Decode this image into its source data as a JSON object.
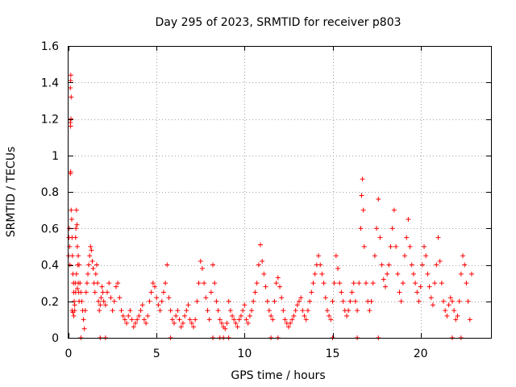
{
  "chart_data": {
    "type": "scatter",
    "title": "Day 295 of 2023, SRMTID for receiver p803",
    "xlabel": "GPS time / hours",
    "ylabel": "SRMTID / TECUs",
    "xlim": [
      0,
      24
    ],
    "ylim": [
      0,
      1.6
    ],
    "xticks": [
      0,
      5,
      10,
      15,
      20
    ],
    "xtick_labels": [
      "0",
      "5",
      "10",
      "15",
      "20"
    ],
    "yticks": [
      0,
      0.2,
      0.4,
      0.6,
      0.8,
      1,
      1.2,
      1.4,
      1.6
    ],
    "ytick_labels": [
      "0",
      "0.2",
      "0.4",
      "0.6",
      "0.8",
      "1",
      "1.2",
      "1.4",
      "1.6"
    ],
    "grid": true,
    "marker": "plus",
    "color": "#ff0000",
    "series": [
      {
        "name": "SRMTID",
        "points": [
          [
            0.0,
            0.45
          ],
          [
            0.02,
            0.55
          ],
          [
            0.04,
            0.6
          ],
          [
            0.06,
            0.5
          ],
          [
            0.08,
            0.4
          ],
          [
            0.1,
            1.37
          ],
          [
            0.12,
            1.41
          ],
          [
            0.13,
            1.44
          ],
          [
            0.15,
            1.32
          ],
          [
            0.1,
            1.18
          ],
          [
            0.12,
            1.16
          ],
          [
            0.14,
            1.2
          ],
          [
            0.1,
            0.9
          ],
          [
            0.12,
            0.91
          ],
          [
            0.15,
            0.7
          ],
          [
            0.18,
            0.65
          ],
          [
            0.2,
            0.55
          ],
          [
            0.22,
            0.45
          ],
          [
            0.25,
            0.35
          ],
          [
            0.28,
            0.3
          ],
          [
            0.3,
            0.25
          ],
          [
            0.32,
            0.2
          ],
          [
            0.35,
            0.15
          ],
          [
            0.38,
            0.3
          ],
          [
            0.4,
            0.55
          ],
          [
            0.42,
            0.6
          ],
          [
            0.45,
            0.7
          ],
          [
            0.48,
            0.62
          ],
          [
            0.5,
            0.5
          ],
          [
            0.52,
            0.4
          ],
          [
            0.55,
            0.3
          ],
          [
            0.58,
            0.25
          ],
          [
            0.6,
            0.2
          ],
          [
            0.2,
            0.15
          ],
          [
            0.25,
            0.14
          ],
          [
            0.3,
            0.12
          ],
          [
            0.35,
            0.18
          ],
          [
            0.4,
            0.25
          ],
          [
            0.45,
            0.35
          ],
          [
            0.5,
            0.27
          ],
          [
            0.55,
            0.45
          ],
          [
            0.6,
            0.4
          ],
          [
            0.65,
            0.3
          ],
          [
            0.7,
            0.25
          ],
          [
            0.75,
            0.2
          ],
          [
            0.8,
            0.15
          ],
          [
            0.85,
            0.1
          ],
          [
            0.9,
            0.05
          ],
          [
            0.95,
            0.15
          ],
          [
            1.0,
            0.25
          ],
          [
            1.05,
            0.3
          ],
          [
            1.1,
            0.35
          ],
          [
            1.15,
            0.4
          ],
          [
            1.2,
            0.45
          ],
          [
            1.25,
            0.5
          ],
          [
            1.3,
            0.48
          ],
          [
            1.35,
            0.42
          ],
          [
            1.4,
            0.38
          ],
          [
            1.45,
            0.3
          ],
          [
            1.5,
            0.25
          ],
          [
            1.55,
            0.35
          ],
          [
            1.6,
            0.4
          ],
          [
            1.65,
            0.3
          ],
          [
            1.7,
            0.2
          ],
          [
            1.75,
            0.15
          ],
          [
            1.8,
            0.18
          ],
          [
            1.85,
            0.22
          ],
          [
            1.9,
            0.28
          ],
          [
            1.95,
            0.25
          ],
          [
            2.0,
            0.2
          ],
          [
            2.1,
            0.18
          ],
          [
            2.2,
            0.25
          ],
          [
            2.3,
            0.3
          ],
          [
            2.4,
            0.22
          ],
          [
            2.5,
            0.15
          ],
          [
            2.6,
            0.2
          ],
          [
            2.7,
            0.28
          ],
          [
            2.8,
            0.3
          ],
          [
            2.9,
            0.22
          ],
          [
            3.0,
            0.15
          ],
          [
            3.1,
            0.12
          ],
          [
            3.2,
            0.1
          ],
          [
            3.3,
            0.08
          ],
          [
            3.4,
            0.12
          ],
          [
            3.5,
            0.15
          ],
          [
            3.6,
            0.1
          ],
          [
            3.7,
            0.06
          ],
          [
            3.8,
            0.08
          ],
          [
            3.9,
            0.1
          ],
          [
            4.0,
            0.12
          ],
          [
            4.1,
            0.15
          ],
          [
            4.2,
            0.18
          ],
          [
            4.3,
            0.1
          ],
          [
            4.4,
            0.08
          ],
          [
            4.5,
            0.12
          ],
          [
            4.6,
            0.2
          ],
          [
            4.7,
            0.25
          ],
          [
            4.8,
            0.3
          ],
          [
            4.9,
            0.28
          ],
          [
            5.0,
            0.22
          ],
          [
            5.1,
            0.18
          ],
          [
            5.2,
            0.15
          ],
          [
            5.3,
            0.2
          ],
          [
            5.4,
            0.25
          ],
          [
            5.5,
            0.3
          ],
          [
            5.6,
            0.4
          ],
          [
            5.7,
            0.22
          ],
          [
            5.8,
            0.15
          ],
          [
            5.9,
            0.1
          ],
          [
            6.0,
            0.08
          ],
          [
            6.1,
            0.12
          ],
          [
            6.2,
            0.15
          ],
          [
            6.3,
            0.1
          ],
          [
            6.4,
            0.06
          ],
          [
            6.5,
            0.08
          ],
          [
            6.6,
            0.12
          ],
          [
            6.7,
            0.15
          ],
          [
            6.8,
            0.18
          ],
          [
            6.9,
            0.1
          ],
          [
            7.0,
            0.08
          ],
          [
            7.1,
            0.06
          ],
          [
            7.2,
            0.1
          ],
          [
            7.3,
            0.2
          ],
          [
            7.4,
            0.3
          ],
          [
            7.5,
            0.42
          ],
          [
            7.6,
            0.38
          ],
          [
            7.7,
            0.3
          ],
          [
            7.8,
            0.22
          ],
          [
            7.9,
            0.15
          ],
          [
            8.0,
            0.1
          ],
          [
            8.1,
            0.25
          ],
          [
            8.2,
            0.4
          ],
          [
            8.3,
            0.3
          ],
          [
            8.4,
            0.2
          ],
          [
            8.5,
            0.15
          ],
          [
            8.6,
            0.1
          ],
          [
            8.7,
            0.08
          ],
          [
            8.8,
            0.06
          ],
          [
            8.9,
            0.05
          ],
          [
            9.0,
            0.08
          ],
          [
            9.1,
            0.2
          ],
          [
            9.2,
            0.15
          ],
          [
            9.3,
            0.12
          ],
          [
            9.4,
            0.1
          ],
          [
            9.5,
            0.08
          ],
          [
            9.6,
            0.06
          ],
          [
            9.7,
            0.1
          ],
          [
            9.8,
            0.12
          ],
          [
            9.9,
            0.15
          ],
          [
            10.0,
            0.18
          ],
          [
            10.1,
            0.1
          ],
          [
            10.2,
            0.08
          ],
          [
            10.3,
            0.12
          ],
          [
            10.4,
            0.15
          ],
          [
            10.5,
            0.2
          ],
          [
            10.6,
            0.25
          ],
          [
            10.7,
            0.3
          ],
          [
            10.8,
            0.4
          ],
          [
            10.9,
            0.51
          ],
          [
            11.0,
            0.42
          ],
          [
            11.1,
            0.35
          ],
          [
            11.2,
            0.28
          ],
          [
            11.3,
            0.2
          ],
          [
            11.4,
            0.15
          ],
          [
            11.5,
            0.12
          ],
          [
            11.6,
            0.1
          ],
          [
            11.7,
            0.2
          ],
          [
            11.8,
            0.3
          ],
          [
            11.9,
            0.33
          ],
          [
            12.0,
            0.28
          ],
          [
            12.1,
            0.22
          ],
          [
            12.2,
            0.15
          ],
          [
            12.3,
            0.1
          ],
          [
            12.4,
            0.08
          ],
          [
            12.5,
            0.06
          ],
          [
            12.6,
            0.08
          ],
          [
            12.7,
            0.1
          ],
          [
            12.8,
            0.12
          ],
          [
            12.9,
            0.15
          ],
          [
            13.0,
            0.18
          ],
          [
            13.1,
            0.2
          ],
          [
            13.2,
            0.22
          ],
          [
            13.3,
            0.15
          ],
          [
            13.4,
            0.12
          ],
          [
            13.5,
            0.1
          ],
          [
            13.6,
            0.15
          ],
          [
            13.7,
            0.2
          ],
          [
            13.8,
            0.25
          ],
          [
            13.9,
            0.3
          ],
          [
            14.0,
            0.35
          ],
          [
            14.1,
            0.4
          ],
          [
            14.2,
            0.45
          ],
          [
            14.3,
            0.4
          ],
          [
            14.4,
            0.35
          ],
          [
            14.5,
            0.3
          ],
          [
            14.6,
            0.22
          ],
          [
            14.7,
            0.15
          ],
          [
            14.8,
            0.12
          ],
          [
            14.9,
            0.1
          ],
          [
            15.0,
            0.2
          ],
          [
            15.1,
            0.3
          ],
          [
            15.2,
            0.45
          ],
          [
            15.3,
            0.38
          ],
          [
            15.4,
            0.3
          ],
          [
            15.5,
            0.25
          ],
          [
            15.6,
            0.2
          ],
          [
            15.7,
            0.15
          ],
          [
            15.8,
            0.12
          ],
          [
            15.9,
            0.15
          ],
          [
            16.0,
            0.2
          ],
          [
            16.1,
            0.25
          ],
          [
            16.2,
            0.3
          ],
          [
            16.3,
            0.2
          ],
          [
            16.4,
            0.15
          ],
          [
            16.5,
            0.3
          ],
          [
            16.6,
            0.6
          ],
          [
            16.65,
            0.78
          ],
          [
            16.7,
            0.87
          ],
          [
            16.75,
            0.7
          ],
          [
            16.8,
            0.5
          ],
          [
            16.9,
            0.3
          ],
          [
            17.0,
            0.2
          ],
          [
            17.1,
            0.15
          ],
          [
            17.2,
            0.2
          ],
          [
            17.3,
            0.3
          ],
          [
            17.4,
            0.45
          ],
          [
            17.5,
            0.6
          ],
          [
            17.6,
            0.76
          ],
          [
            17.7,
            0.55
          ],
          [
            17.8,
            0.4
          ],
          [
            17.9,
            0.32
          ],
          [
            18.0,
            0.28
          ],
          [
            18.1,
            0.35
          ],
          [
            18.2,
            0.4
          ],
          [
            18.3,
            0.5
          ],
          [
            18.4,
            0.6
          ],
          [
            18.5,
            0.7
          ],
          [
            18.6,
            0.5
          ],
          [
            18.7,
            0.35
          ],
          [
            18.8,
            0.25
          ],
          [
            18.9,
            0.2
          ],
          [
            19.0,
            0.3
          ],
          [
            19.1,
            0.45
          ],
          [
            19.2,
            0.55
          ],
          [
            19.3,
            0.65
          ],
          [
            19.4,
            0.5
          ],
          [
            19.5,
            0.4
          ],
          [
            19.6,
            0.35
          ],
          [
            19.7,
            0.3
          ],
          [
            19.8,
            0.25
          ],
          [
            19.9,
            0.2
          ],
          [
            20.0,
            0.28
          ],
          [
            20.1,
            0.4
          ],
          [
            20.2,
            0.5
          ],
          [
            20.3,
            0.45
          ],
          [
            20.4,
            0.35
          ],
          [
            20.5,
            0.28
          ],
          [
            20.6,
            0.22
          ],
          [
            20.7,
            0.18
          ],
          [
            20.8,
            0.3
          ],
          [
            20.9,
            0.4
          ],
          [
            21.0,
            0.55
          ],
          [
            21.1,
            0.42
          ],
          [
            21.2,
            0.3
          ],
          [
            21.3,
            0.2
          ],
          [
            21.4,
            0.15
          ],
          [
            21.5,
            0.12
          ],
          [
            21.6,
            0.18
          ],
          [
            21.7,
            0.22
          ],
          [
            21.8,
            0.2
          ],
          [
            21.9,
            0.15
          ],
          [
            22.0,
            0.1
          ],
          [
            22.1,
            0.12
          ],
          [
            22.2,
            0.2
          ],
          [
            22.3,
            0.35
          ],
          [
            22.4,
            0.45
          ],
          [
            22.5,
            0.4
          ],
          [
            22.6,
            0.3
          ],
          [
            22.7,
            0.2
          ],
          [
            22.8,
            0.1
          ],
          [
            22.9,
            0.35
          ],
          [
            0.7,
            0.0
          ],
          [
            1.8,
            0.0
          ],
          [
            2.1,
            0.0
          ],
          [
            5.8,
            0.0
          ],
          [
            8.2,
            0.0
          ],
          [
            8.6,
            0.0
          ],
          [
            8.8,
            0.0
          ],
          [
            9.1,
            0.0
          ],
          [
            11.5,
            0.0
          ],
          [
            11.9,
            0.0
          ],
          [
            15.0,
            0.0
          ],
          [
            16.4,
            0.0
          ],
          [
            17.6,
            0.0
          ],
          [
            21.8,
            0.0
          ],
          [
            22.3,
            0.0
          ]
        ]
      }
    ]
  }
}
